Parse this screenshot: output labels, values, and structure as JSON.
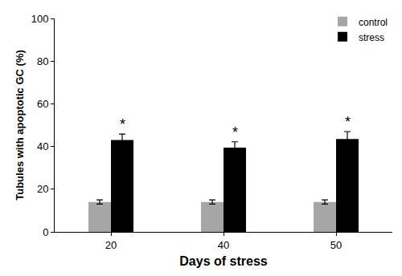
{
  "chart_data": {
    "type": "bar",
    "x_label": "Days of stress",
    "y_label": "Tubules with apoptotic GC (%)",
    "categories": [
      "20",
      "40",
      "50"
    ],
    "series": [
      {
        "name": "control",
        "color": "#a6a6a6",
        "values": [
          14,
          14,
          14
        ],
        "errors": [
          1,
          1,
          1
        ]
      },
      {
        "name": "stress",
        "color": "#000000",
        "values": [
          43,
          39.5,
          43.5
        ],
        "errors": [
          2.8,
          2.7,
          3.5
        ]
      }
    ],
    "annotations": [
      {
        "category": "20",
        "series": "stress",
        "text": "*"
      },
      {
        "category": "40",
        "series": "stress",
        "text": "*"
      },
      {
        "category": "50",
        "series": "stress",
        "text": "*"
      }
    ],
    "ylim": [
      0,
      100
    ],
    "yticks": [
      0,
      20,
      40,
      60,
      80,
      100
    ],
    "grid": false,
    "legend": "top-right"
  }
}
